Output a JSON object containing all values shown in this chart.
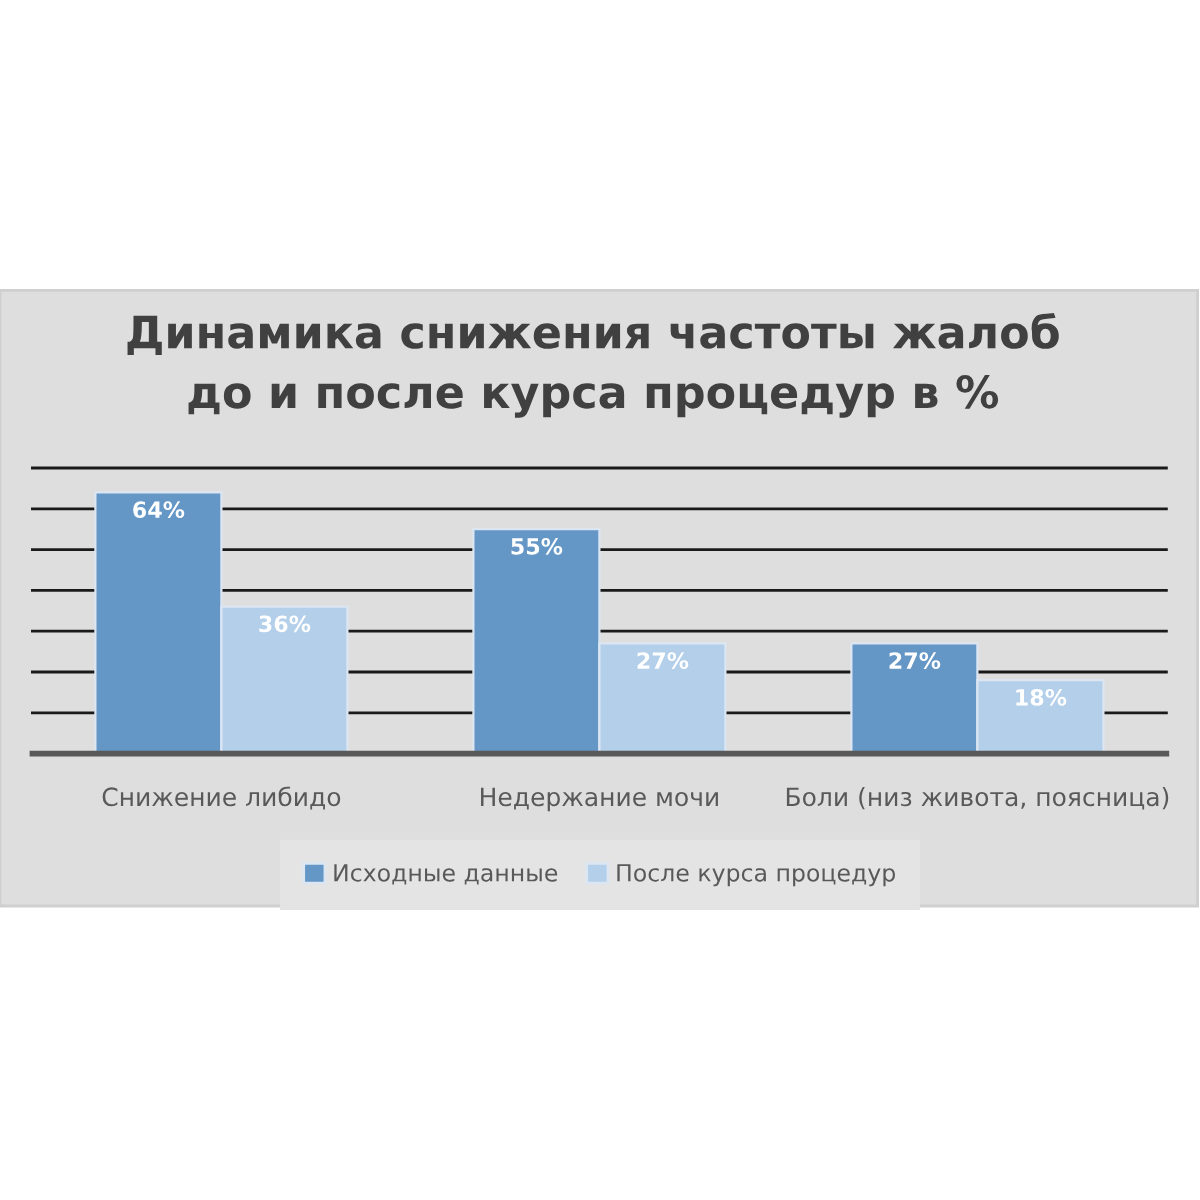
{
  "chart_data": {
    "type": "bar",
    "title": "Динамика снижения частоты жалоб\nдо и после курса процедур в %",
    "categories": [
      "Снижение либидо",
      "Недержание мочи",
      "Боли (низ живота, поясница)"
    ],
    "series": [
      {
        "name": "Исходные данные",
        "color": "#6496c6",
        "values": [
          64,
          55,
          27
        ],
        "value_labels": [
          "64%",
          "55%",
          "27%"
        ]
      },
      {
        "name": "После курса процедур",
        "color": "#b4cfea",
        "values": [
          36,
          27,
          18
        ],
        "value_labels": [
          "36%",
          "27%",
          "18%"
        ]
      }
    ],
    "ylim": [
      0,
      70
    ],
    "yticks": [
      {
        "value": 0,
        "label": null
      },
      {
        "value": 10,
        "label": null
      },
      {
        "value": 20,
        "label": null
      },
      {
        "value": 30,
        "label": null
      },
      {
        "value": 40,
        "label": null
      },
      {
        "value": 50,
        "label": null
      },
      {
        "value": 60,
        "label": null
      },
      {
        "value": 70,
        "label": null
      }
    ],
    "tick_labels": "x",
    "grid": "y",
    "legend": "bottom"
  }
}
